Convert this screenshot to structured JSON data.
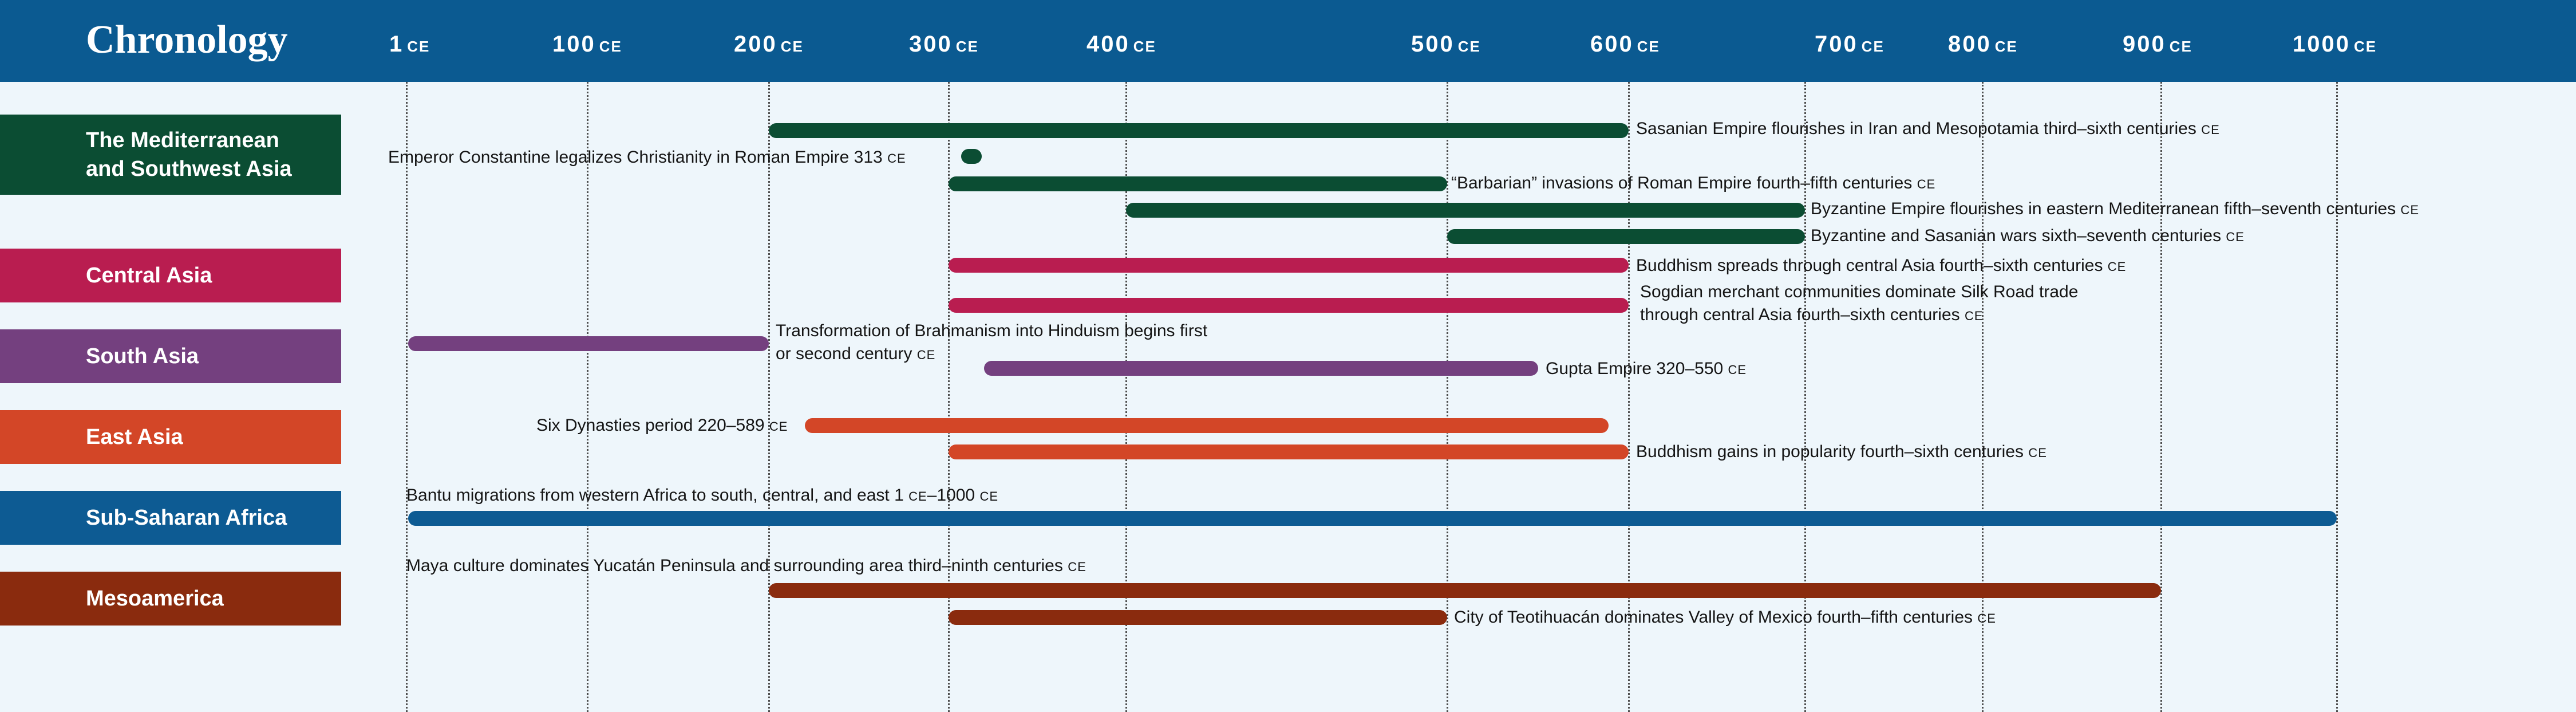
{
  "header": {
    "title": "Chronology"
  },
  "axis": {
    "ticks": [
      {
        "value": "1",
        "era": "CE"
      },
      {
        "value": "100",
        "era": "CE"
      },
      {
        "value": "200",
        "era": "CE"
      },
      {
        "value": "300",
        "era": "CE"
      },
      {
        "value": "400",
        "era": "CE"
      },
      {
        "value": "500",
        "era": "CE"
      },
      {
        "value": "600",
        "era": "CE"
      },
      {
        "value": "700",
        "era": "CE"
      },
      {
        "value": "800",
        "era": "CE"
      },
      {
        "value": "900",
        "era": "CE"
      },
      {
        "value": "1000",
        "era": "CE"
      }
    ]
  },
  "regions": [
    {
      "name_line1": "The Mediterranean",
      "name_line2": "and Southwest Asia",
      "color": "#0b4d33"
    },
    {
      "name_line1": "Central Asia",
      "name_line2": "",
      "color": "#b91d50"
    },
    {
      "name_line1": "South Asia",
      "name_line2": "",
      "color": "#74407f"
    },
    {
      "name_line1": "East Asia",
      "name_line2": "",
      "color": "#d34627"
    },
    {
      "name_line1": "Sub-Saharan Africa",
      "name_line2": "",
      "color": "#0d5b93"
    },
    {
      "name_line1": "Mesoamerica",
      "name_line2": "",
      "color": "#8a2b0e"
    }
  ],
  "events": [
    {
      "region": 0,
      "start": 200,
      "end": 600,
      "text": "Sasanian Empire flourishes in Iran and Mesopotamia third–sixth centuries",
      "era": "CE"
    },
    {
      "region": 0,
      "start": 313,
      "end": 313,
      "text": "Emperor Constantine legalizes Christianity in Roman Empire 313",
      "era": "CE"
    },
    {
      "region": 0,
      "start": 300,
      "end": 500,
      "text": "“Barbarian” invasions of Roman Empire fourth–fifth centuries",
      "era": "CE"
    },
    {
      "region": 0,
      "start": 400,
      "end": 700,
      "text": "Byzantine Empire flourishes in eastern Mediterranean fifth–seventh centuries",
      "era": "CE"
    },
    {
      "region": 0,
      "start": 500,
      "end": 700,
      "text": "Byzantine and Sasanian wars sixth–seventh centuries",
      "era": "CE"
    },
    {
      "region": 1,
      "start": 300,
      "end": 600,
      "text": "Buddhism spreads through central Asia fourth–sixth centuries",
      "era": "CE"
    },
    {
      "region": 1,
      "start": 300,
      "end": 600,
      "text_line1": "Sogdian merchant communities dominate Silk Road trade",
      "text": "through central Asia fourth–sixth centuries",
      "era": "CE"
    },
    {
      "region": 2,
      "start": 1,
      "end": 200,
      "text_line1": "Transformation of Brahmanism into Hinduism begins first",
      "text": "or second century",
      "era": "CE"
    },
    {
      "region": 2,
      "start": 320,
      "end": 550,
      "text": "Gupta Empire 320–550",
      "era": "CE"
    },
    {
      "region": 3,
      "start": 220,
      "end": 589,
      "text": "Six Dynasties period 220–589",
      "era": "CE"
    },
    {
      "region": 3,
      "start": 300,
      "end": 600,
      "text": "Buddhism gains in popularity fourth–sixth centuries",
      "era": "CE"
    },
    {
      "region": 4,
      "start": 1,
      "end": 1000,
      "text": "Bantu migrations from western Africa to south, central, and east 1",
      "era": "CE",
      "text_after": "–1000",
      "era_after": "CE"
    },
    {
      "region": 5,
      "start": 200,
      "end": 900,
      "text": "Maya culture dominates Yucatán Peninsula and surrounding area third–ninth centuries",
      "era": "CE"
    },
    {
      "region": 5,
      "start": 300,
      "end": 500,
      "text": "City of Teotihuacán dominates Valley of Mexico fourth–fifth centuries",
      "era": "CE"
    }
  ]
}
